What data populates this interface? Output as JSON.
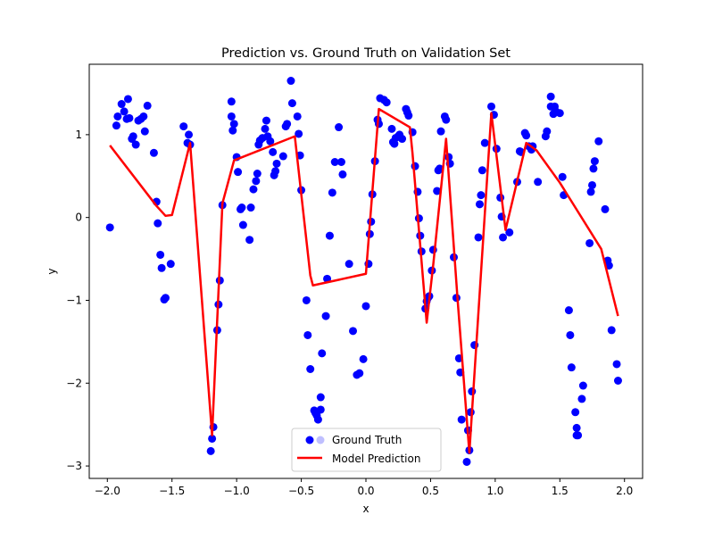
{
  "chart_data": {
    "type": "scatter",
    "title": "Prediction vs. Ground Truth on Validation Set",
    "xlabel": "x",
    "ylabel": "y",
    "xlim": [
      -2.14,
      2.14
    ],
    "ylim": [
      -3.15,
      1.85
    ],
    "xticks": [
      -2.0,
      -1.5,
      -1.0,
      -0.5,
      0.0,
      0.5,
      1.0,
      1.5,
      2.0
    ],
    "xtick_labels": [
      "−2.0",
      "−1.5",
      "−1.0",
      "−0.5",
      "0.0",
      "0.5",
      "1.0",
      "1.5",
      "2.0"
    ],
    "yticks": [
      1,
      0,
      -1,
      -2,
      -3
    ],
    "ytick_labels": [
      "1",
      "0",
      "−1",
      "−2",
      "−3"
    ],
    "grid": false,
    "legend_position": "lower center",
    "series": [
      {
        "name": "Ground Truth",
        "kind": "scatter",
        "color": "#0000ff",
        "points": [
          [
            -1.98,
            -0.12
          ],
          [
            -1.93,
            1.11
          ],
          [
            -1.92,
            1.22
          ],
          [
            -1.89,
            1.37
          ],
          [
            -1.87,
            1.28
          ],
          [
            -1.85,
            1.19
          ],
          [
            -1.84,
            1.43
          ],
          [
            -1.83,
            1.2
          ],
          [
            -1.81,
            0.95
          ],
          [
            -1.8,
            0.98
          ],
          [
            -1.78,
            0.88
          ],
          [
            -1.76,
            1.17
          ],
          [
            -1.74,
            1.19
          ],
          [
            -1.72,
            1.22
          ],
          [
            -1.71,
            1.04
          ],
          [
            -1.69,
            1.35
          ],
          [
            -1.64,
            0.78
          ],
          [
            -1.62,
            0.19
          ],
          [
            -1.61,
            -0.07
          ],
          [
            -1.59,
            -0.45
          ],
          [
            -1.58,
            -0.61
          ],
          [
            -1.56,
            -0.99
          ],
          [
            -1.55,
            -0.97
          ],
          [
            -1.51,
            -0.56
          ],
          [
            -1.41,
            1.1
          ],
          [
            -1.38,
            0.9
          ],
          [
            -1.37,
            1.0
          ],
          [
            -1.36,
            0.88
          ],
          [
            -1.2,
            -2.82
          ],
          [
            -1.19,
            -2.67
          ],
          [
            -1.18,
            -2.53
          ],
          [
            -1.15,
            -1.36
          ],
          [
            -1.14,
            -1.05
          ],
          [
            -1.13,
            -0.76
          ],
          [
            -1.11,
            0.15
          ],
          [
            -1.04,
            1.4
          ],
          [
            -1.04,
            1.22
          ],
          [
            -1.03,
            1.05
          ],
          [
            -1.02,
            1.13
          ],
          [
            -1.0,
            0.73
          ],
          [
            -0.99,
            0.55
          ],
          [
            -0.97,
            0.1
          ],
          [
            -0.96,
            0.12
          ],
          [
            -0.95,
            -0.09
          ],
          [
            -0.9,
            -0.27
          ],
          [
            -0.89,
            0.12
          ],
          [
            -0.87,
            0.34
          ],
          [
            -0.85,
            0.44
          ],
          [
            -0.84,
            0.53
          ],
          [
            -0.83,
            0.88
          ],
          [
            -0.82,
            0.93
          ],
          [
            -0.8,
            0.96
          ],
          [
            -0.78,
            1.07
          ],
          [
            -0.77,
            1.17
          ],
          [
            -0.76,
            0.98
          ],
          [
            -0.74,
            0.92
          ],
          [
            -0.72,
            0.79
          ],
          [
            -0.71,
            0.51
          ],
          [
            -0.7,
            0.56
          ],
          [
            -0.69,
            0.65
          ],
          [
            -0.64,
            0.74
          ],
          [
            -0.62,
            1.1
          ],
          [
            -0.61,
            1.13
          ],
          [
            -0.58,
            1.65
          ],
          [
            -0.57,
            1.38
          ],
          [
            -0.53,
            1.22
          ],
          [
            -0.52,
            1.01
          ],
          [
            -0.51,
            0.75
          ],
          [
            -0.5,
            0.33
          ],
          [
            -0.46,
            -1.0
          ],
          [
            -0.45,
            -1.42
          ],
          [
            -0.43,
            -1.83
          ],
          [
            -0.4,
            -2.33
          ],
          [
            -0.39,
            -2.36
          ],
          [
            -0.38,
            -2.39
          ],
          [
            -0.37,
            -2.44
          ],
          [
            -0.35,
            -2.32
          ],
          [
            -0.35,
            -2.17
          ],
          [
            -0.34,
            -1.64
          ],
          [
            -0.31,
            -1.19
          ],
          [
            -0.3,
            -0.74
          ],
          [
            -0.28,
            -0.22
          ],
          [
            -0.26,
            0.3
          ],
          [
            -0.24,
            0.67
          ],
          [
            -0.21,
            1.09
          ],
          [
            -0.19,
            0.67
          ],
          [
            -0.18,
            0.52
          ],
          [
            -0.13,
            -0.56
          ],
          [
            -0.1,
            -1.37
          ],
          [
            -0.07,
            -1.9
          ],
          [
            -0.05,
            -1.88
          ],
          [
            -0.02,
            -1.71
          ],
          [
            0.0,
            -1.07
          ],
          [
            0.02,
            -0.56
          ],
          [
            0.03,
            -0.2
          ],
          [
            0.04,
            -0.05
          ],
          [
            0.05,
            0.28
          ],
          [
            0.07,
            0.68
          ],
          [
            0.09,
            1.18
          ],
          [
            0.1,
            1.13
          ],
          [
            0.11,
            1.44
          ],
          [
            0.14,
            1.42
          ],
          [
            0.16,
            1.39
          ],
          [
            0.2,
            1.07
          ],
          [
            0.21,
            0.91
          ],
          [
            0.22,
            0.89
          ],
          [
            0.23,
            0.96
          ],
          [
            0.25,
            0.98
          ],
          [
            0.26,
            1.0
          ],
          [
            0.28,
            0.95
          ],
          [
            0.31,
            1.31
          ],
          [
            0.32,
            1.27
          ],
          [
            0.33,
            1.23
          ],
          [
            0.36,
            1.03
          ],
          [
            0.38,
            0.62
          ],
          [
            0.4,
            0.31
          ],
          [
            0.41,
            -0.01
          ],
          [
            0.42,
            -0.22
          ],
          [
            0.43,
            -0.41
          ],
          [
            0.46,
            -1.1
          ],
          [
            0.47,
            -1.01
          ],
          [
            0.48,
            -0.97
          ],
          [
            0.49,
            -0.95
          ],
          [
            0.51,
            -0.64
          ],
          [
            0.52,
            -0.39
          ],
          [
            0.55,
            0.32
          ],
          [
            0.56,
            0.57
          ],
          [
            0.57,
            0.59
          ],
          [
            0.58,
            1.04
          ],
          [
            0.61,
            1.22
          ],
          [
            0.62,
            1.18
          ],
          [
            0.64,
            0.73
          ],
          [
            0.65,
            0.65
          ],
          [
            0.68,
            -0.48
          ],
          [
            0.7,
            -0.97
          ],
          [
            0.72,
            -1.7
          ],
          [
            0.73,
            -1.87
          ],
          [
            0.74,
            -2.44
          ],
          [
            0.78,
            -2.95
          ],
          [
            0.79,
            -2.57
          ],
          [
            0.8,
            -2.81
          ],
          [
            0.81,
            -2.35
          ],
          [
            0.82,
            -2.1
          ],
          [
            0.84,
            -1.54
          ],
          [
            0.87,
            -0.24
          ],
          [
            0.88,
            0.16
          ],
          [
            0.89,
            0.27
          ],
          [
            0.9,
            0.57
          ],
          [
            0.92,
            0.9
          ],
          [
            0.97,
            1.34
          ],
          [
            0.99,
            1.24
          ],
          [
            1.01,
            0.83
          ],
          [
            1.04,
            0.24
          ],
          [
            1.05,
            0.01
          ],
          [
            1.06,
            -0.24
          ],
          [
            1.11,
            -0.18
          ],
          [
            1.17,
            0.43
          ],
          [
            1.19,
            0.8
          ],
          [
            1.2,
            0.79
          ],
          [
            1.23,
            1.02
          ],
          [
            1.24,
            0.99
          ],
          [
            1.26,
            0.86
          ],
          [
            1.28,
            0.82
          ],
          [
            1.29,
            0.86
          ],
          [
            1.33,
            0.43
          ],
          [
            1.39,
            0.98
          ],
          [
            1.4,
            1.04
          ],
          [
            1.43,
            1.46
          ],
          [
            1.43,
            1.34
          ],
          [
            1.45,
            1.25
          ],
          [
            1.46,
            1.34
          ],
          [
            1.47,
            1.28
          ],
          [
            1.5,
            1.26
          ],
          [
            1.52,
            0.49
          ],
          [
            1.53,
            0.27
          ],
          [
            1.57,
            -1.12
          ],
          [
            1.58,
            -1.42
          ],
          [
            1.59,
            -1.81
          ],
          [
            1.62,
            -2.35
          ],
          [
            1.63,
            -2.54
          ],
          [
            1.63,
            -2.63
          ],
          [
            1.64,
            -2.63
          ],
          [
            1.67,
            -2.19
          ],
          [
            1.68,
            -2.03
          ],
          [
            1.73,
            -0.31
          ],
          [
            1.74,
            0.31
          ],
          [
            1.75,
            0.39
          ],
          [
            1.76,
            0.59
          ],
          [
            1.77,
            0.68
          ],
          [
            1.8,
            0.92
          ],
          [
            1.85,
            0.1
          ],
          [
            1.87,
            -0.52
          ],
          [
            1.88,
            -0.58
          ],
          [
            1.9,
            -1.36
          ],
          [
            1.94,
            -1.77
          ],
          [
            1.95,
            -1.97
          ]
        ]
      },
      {
        "name": "Model Prediction",
        "kind": "line",
        "color": "#ff0000",
        "points": [
          [
            -1.98,
            0.87
          ],
          [
            -1.62,
            0.14
          ],
          [
            -1.55,
            0.02
          ],
          [
            -1.5,
            0.03
          ],
          [
            -1.36,
            0.9
          ],
          [
            -1.19,
            -2.63
          ],
          [
            -1.11,
            0.17
          ],
          [
            -1.02,
            0.69
          ],
          [
            -0.55,
            0.98
          ],
          [
            -0.43,
            -0.7
          ],
          [
            -0.41,
            -0.82
          ],
          [
            0.0,
            -0.68
          ],
          [
            0.1,
            1.31
          ],
          [
            0.34,
            1.09
          ],
          [
            0.36,
            0.78
          ],
          [
            0.47,
            -1.27
          ],
          [
            0.52,
            -0.58
          ],
          [
            0.62,
            0.95
          ],
          [
            0.71,
            -1.01
          ],
          [
            0.8,
            -2.84
          ],
          [
            0.97,
            1.26
          ],
          [
            1.08,
            -0.15
          ],
          [
            1.24,
            0.9
          ],
          [
            1.32,
            0.81
          ],
          [
            1.5,
            0.42
          ],
          [
            1.82,
            -0.38
          ],
          [
            1.95,
            -1.19
          ]
        ]
      }
    ]
  }
}
